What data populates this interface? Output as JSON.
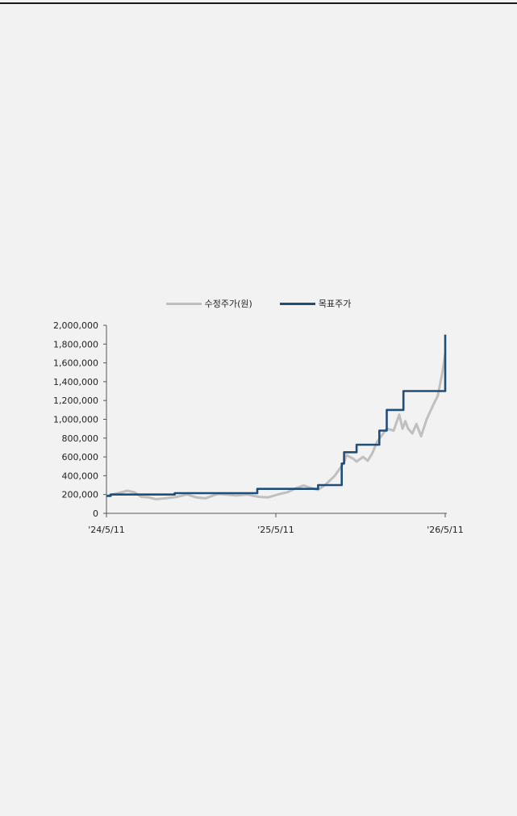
{
  "chart_data": {
    "type": "line",
    "legend": {
      "placement": "top-center"
    },
    "xlim": [
      "2024-05-11",
      "2026-05-11"
    ],
    "x_ticks": [
      {
        "date": "2024-05-11",
        "label": "'24/5/11"
      },
      {
        "date": "2025-05-11",
        "label": "'25/5/11"
      },
      {
        "date": "2026-05-11",
        "label": "'26/5/11"
      }
    ],
    "ylim": [
      0,
      2000000
    ],
    "y_ticks": [
      0,
      200000,
      400000,
      600000,
      800000,
      1000000,
      1200000,
      1400000,
      1600000,
      1800000,
      2000000
    ],
    "y_tick_labels": [
      "0",
      "200,000",
      "400,000",
      "600,000",
      "800,000",
      "1,000,000",
      "1,200,000",
      "1,400,000",
      "1,600,000",
      "1,800,000",
      "2,000,000"
    ],
    "grid": false,
    "series": [
      {
        "name": "수정주가(원)",
        "color": "#bfbfbf",
        "points": [
          [
            "2024-05-11",
            185000
          ],
          [
            "2024-06-05",
            215000
          ],
          [
            "2024-06-25",
            240000
          ],
          [
            "2024-07-10",
            225000
          ],
          [
            "2024-07-25",
            175000
          ],
          [
            "2024-08-10",
            170000
          ],
          [
            "2024-08-25",
            150000
          ],
          [
            "2024-09-15",
            160000
          ],
          [
            "2024-10-10",
            175000
          ],
          [
            "2024-11-01",
            200000
          ],
          [
            "2024-11-20",
            170000
          ],
          [
            "2024-12-10",
            160000
          ],
          [
            "2025-01-05",
            205000
          ],
          [
            "2025-01-25",
            200000
          ],
          [
            "2025-02-15",
            190000
          ],
          [
            "2025-03-10",
            200000
          ],
          [
            "2025-04-05",
            175000
          ],
          [
            "2025-04-25",
            170000
          ],
          [
            "2025-05-15",
            200000
          ],
          [
            "2025-06-05",
            225000
          ],
          [
            "2025-06-25",
            270000
          ],
          [
            "2025-07-10",
            295000
          ],
          [
            "2025-07-25",
            270000
          ],
          [
            "2025-08-10",
            250000
          ],
          [
            "2025-08-25",
            300000
          ],
          [
            "2025-09-15",
            400000
          ],
          [
            "2025-09-25",
            470000
          ],
          [
            "2025-10-05",
            540000
          ],
          [
            "2025-10-10",
            620000
          ],
          [
            "2025-10-25",
            580000
          ],
          [
            "2025-11-01",
            550000
          ],
          [
            "2025-11-15",
            600000
          ],
          [
            "2025-11-25",
            560000
          ],
          [
            "2025-12-05",
            640000
          ],
          [
            "2025-12-15",
            760000
          ],
          [
            "2026-01-05",
            900000
          ],
          [
            "2026-01-20",
            880000
          ],
          [
            "2026-02-01",
            1050000
          ],
          [
            "2026-02-08",
            900000
          ],
          [
            "2026-02-14",
            980000
          ],
          [
            "2026-02-20",
            900000
          ],
          [
            "2026-03-01",
            850000
          ],
          [
            "2026-03-10",
            950000
          ],
          [
            "2026-03-20",
            820000
          ],
          [
            "2026-04-01",
            1000000
          ],
          [
            "2026-04-15",
            1150000
          ],
          [
            "2026-04-25",
            1250000
          ],
          [
            "2026-05-05",
            1500000
          ],
          [
            "2026-05-11",
            1700000
          ]
        ]
      },
      {
        "name": "목표주가",
        "color": "#1f4e79",
        "step": true,
        "points": [
          [
            "2024-05-11",
            185000
          ],
          [
            "2024-05-20",
            200000
          ],
          [
            "2024-10-05",
            215000
          ],
          [
            "2025-04-01",
            260000
          ],
          [
            "2025-08-10",
            300000
          ],
          [
            "2025-09-30",
            530000
          ],
          [
            "2025-10-05",
            650000
          ],
          [
            "2025-11-01",
            730000
          ],
          [
            "2025-12-20",
            880000
          ],
          [
            "2026-01-05",
            1100000
          ],
          [
            "2026-02-10",
            1300000
          ],
          [
            "2026-05-11",
            1900000
          ]
        ]
      }
    ]
  }
}
